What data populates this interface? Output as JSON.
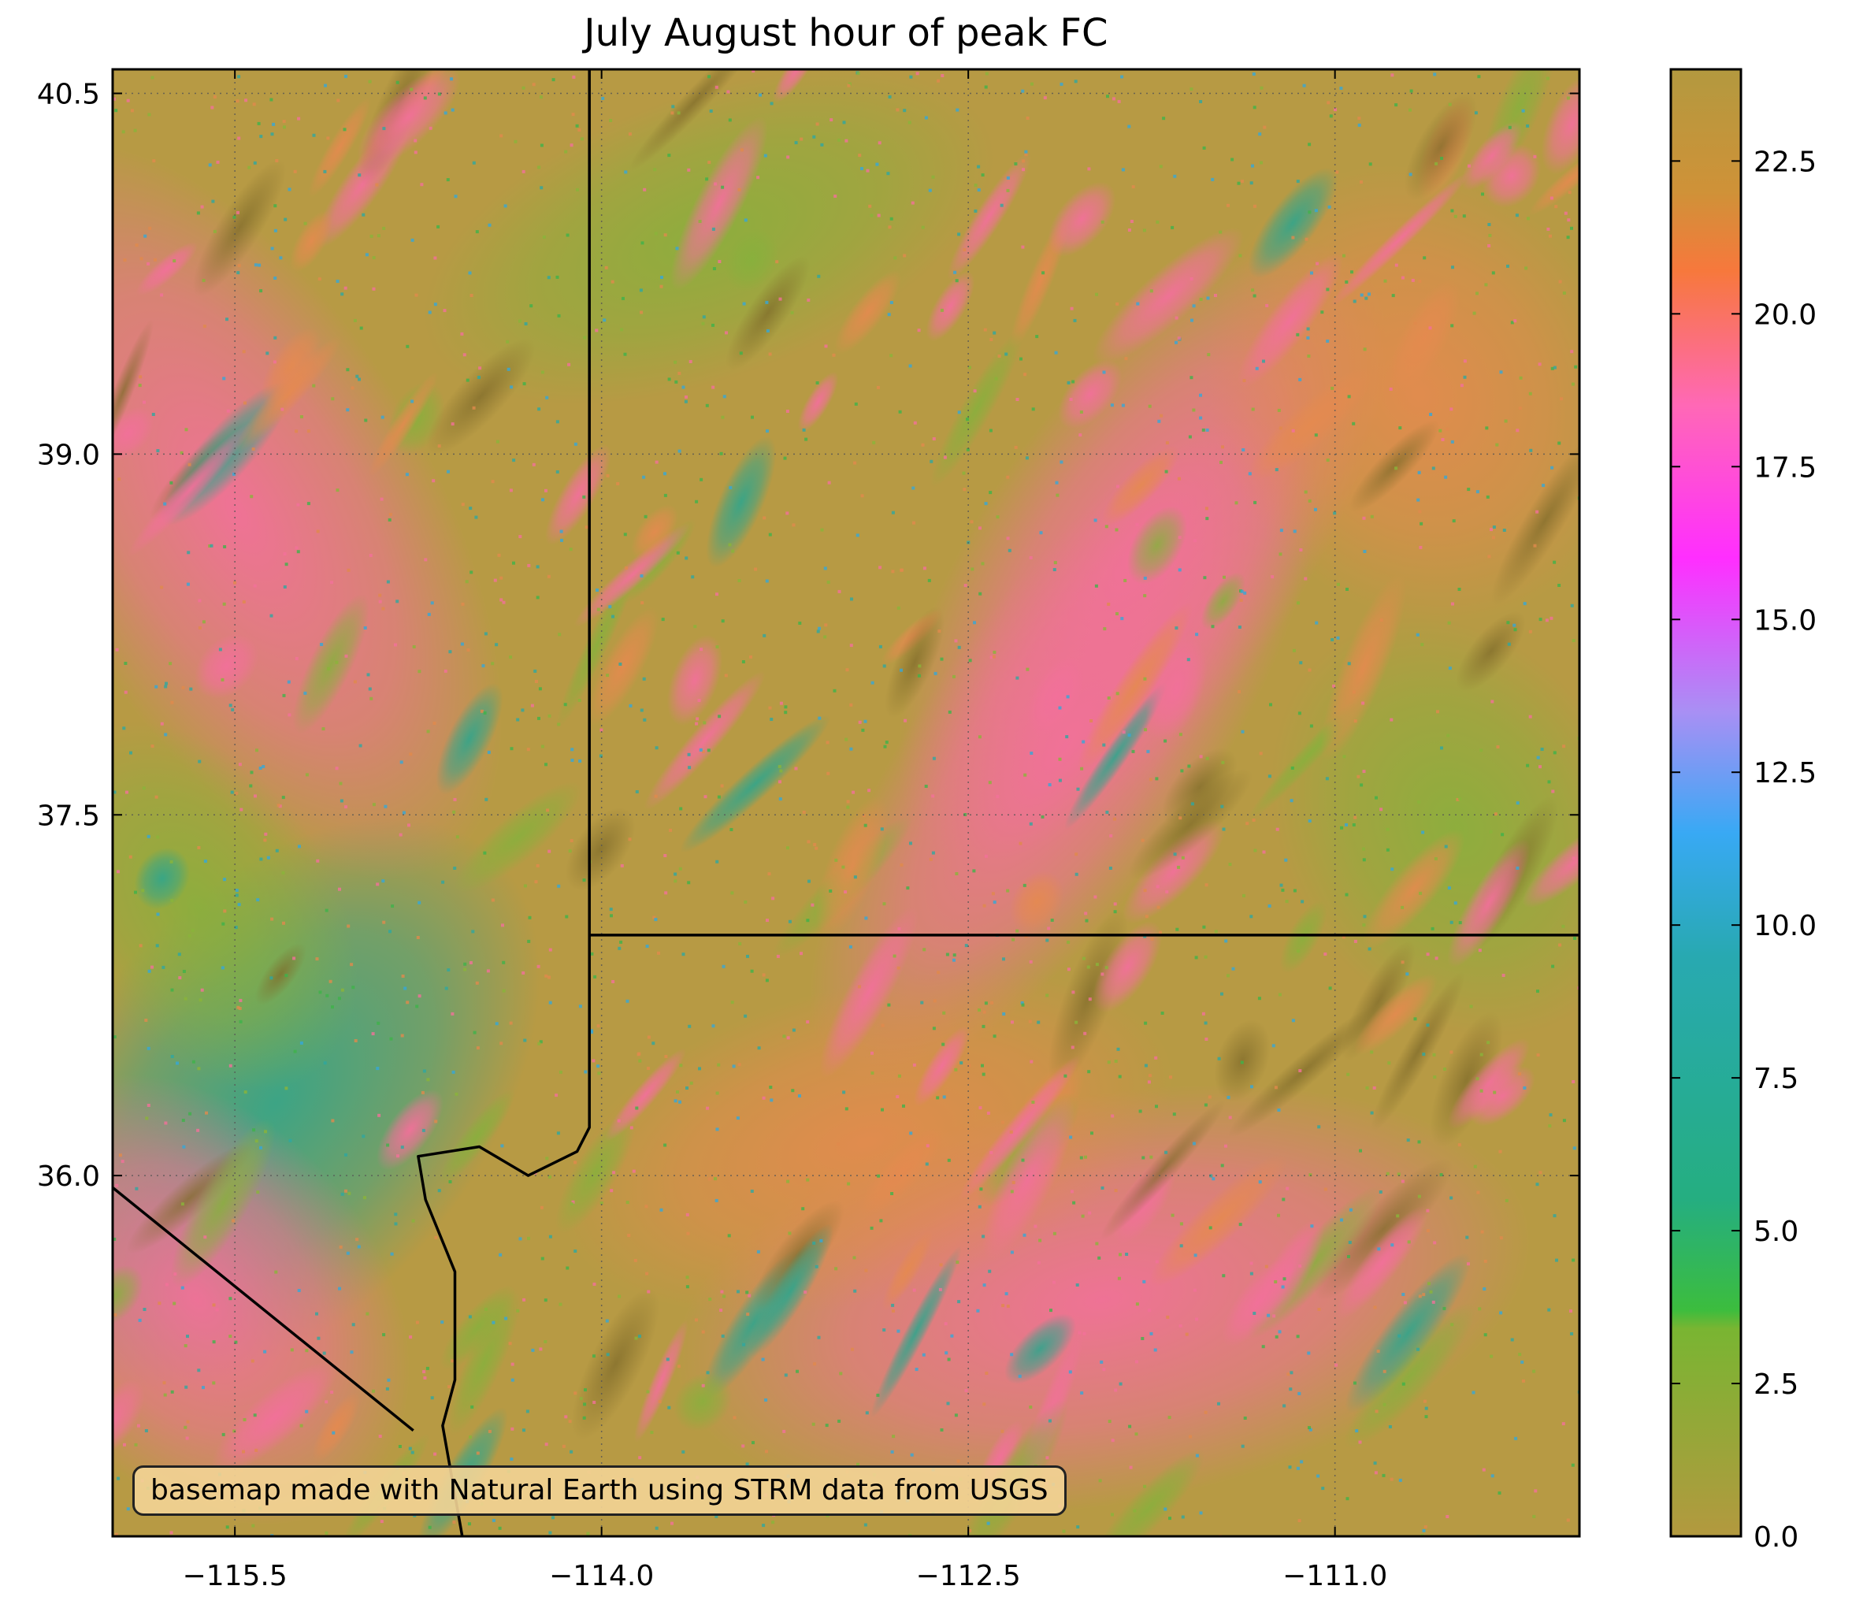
{
  "title": "July August hour of peak FC",
  "annotation": "basemap made with Natural Earth using STRM data from USGS",
  "map": {
    "lon_range": [
      -116.0,
      -110.0
    ],
    "lat_range": [
      34.5,
      40.6
    ],
    "x_ticks": [
      "−115.5",
      "−114.0",
      "−112.5",
      "−111.0"
    ],
    "x_tick_values": [
      -115.5,
      -114.0,
      -112.5,
      -111.0
    ],
    "y_ticks": [
      "40.5",
      "39.0",
      "37.5",
      "36.0"
    ],
    "y_tick_values": [
      40.5,
      39.0,
      37.5,
      36.0
    ],
    "grid": "dotted",
    "state_borders": [
      {
        "name": "",
        "points": [
          [
            -114.05,
            40.6
          ],
          [
            -114.05,
            36.2
          ],
          [
            -114.1,
            36.1
          ],
          [
            -114.3,
            36.0
          ],
          [
            -114.5,
            36.12
          ],
          [
            -114.75,
            36.08
          ],
          [
            -114.72,
            35.9
          ],
          [
            -114.6,
            35.6
          ],
          [
            -114.6,
            35.15
          ],
          [
            -114.65,
            34.96
          ],
          [
            -114.57,
            34.5
          ]
        ]
      },
      {
        "name": "",
        "points": [
          [
            -114.05,
            37.0
          ],
          [
            -110.0,
            37.0
          ]
        ]
      },
      {
        "name": "",
        "points": [
          [
            -116.0,
            35.95
          ],
          [
            -114.77,
            34.94
          ]
        ]
      }
    ]
  },
  "colorbar": {
    "ticks": [
      "0.0",
      "2.5",
      "5.0",
      "7.5",
      "10.0",
      "12.5",
      "15.0",
      "17.5",
      "20.0",
      "22.5"
    ],
    "tick_values": [
      0.0,
      2.5,
      5.0,
      7.5,
      10.0,
      12.5,
      15.0,
      17.5,
      20.0,
      22.5
    ],
    "range": [
      0,
      24
    ],
    "colors": [
      {
        "v": 0,
        "c": "#b3993f"
      },
      {
        "v": 3.4,
        "c": "#79b532"
      },
      {
        "v": 3.7,
        "c": "#3cbd3e"
      },
      {
        "v": 5.5,
        "c": "#25ae80"
      },
      {
        "v": 9.5,
        "c": "#28a9b1"
      },
      {
        "v": 11.5,
        "c": "#38a9f4"
      },
      {
        "v": 13.5,
        "c": "#a98ff4"
      },
      {
        "v": 16.0,
        "c": "#ff2eff"
      },
      {
        "v": 18.5,
        "c": "#ff68b6"
      },
      {
        "v": 20.7,
        "c": "#f7783c"
      },
      {
        "v": 22.0,
        "c": "#cf9238"
      },
      {
        "v": 24.0,
        "c": "#b3993f"
      }
    ]
  },
  "palette": {
    "olive": "#b29a40",
    "orange": "#e08d4a",
    "pink": "#f2709a",
    "green": "#8ab43a",
    "teal": "#3fa58a",
    "border": "#000000"
  }
}
